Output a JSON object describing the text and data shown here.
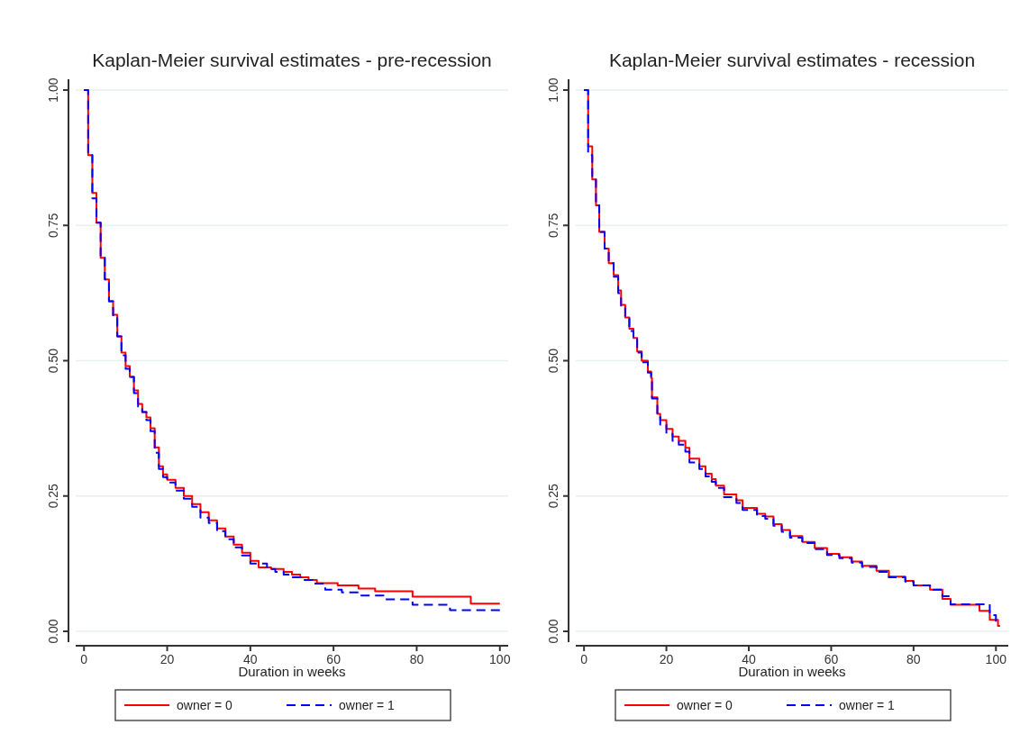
{
  "chart_data": [
    {
      "type": "step",
      "title": "Kaplan-Meier survival estimates - pre-recession",
      "xlabel": "Duration in weeks",
      "xlim": [
        -2,
        102
      ],
      "xticks": [
        0,
        20,
        40,
        60,
        80,
        100
      ],
      "ylim": [
        -0.02,
        1.02
      ],
      "yticks": [
        {
          "value": 0,
          "label": "0.00"
        },
        {
          "value": 0.25,
          "label": "0.25"
        },
        {
          "value": 0.5,
          "label": "0.50"
        },
        {
          "value": 0.75,
          "label": "0.75"
        },
        {
          "value": 1,
          "label": "1.00"
        }
      ],
      "grid": "y",
      "legend": "bottom",
      "series": [
        {
          "name": "owner = 0",
          "color": "#ff0000",
          "line_style": "solid",
          "x": [
            0,
            1,
            2,
            3,
            4,
            5,
            6,
            7,
            8,
            9,
            10,
            11,
            12,
            13,
            14,
            15,
            16,
            17,
            18,
            19,
            20,
            22,
            24,
            26,
            28,
            30,
            32,
            34,
            36,
            38,
            40,
            42,
            45,
            48,
            50,
            52,
            54,
            56,
            61,
            66,
            70,
            79,
            86,
            93,
            100
          ],
          "values": [
            1,
            0.88,
            0.81,
            0.755,
            0.69,
            0.65,
            0.61,
            0.585,
            0.545,
            0.515,
            0.49,
            0.47,
            0.445,
            0.42,
            0.405,
            0.395,
            0.375,
            0.34,
            0.305,
            0.29,
            0.28,
            0.265,
            0.25,
            0.235,
            0.22,
            0.205,
            0.19,
            0.175,
            0.16,
            0.145,
            0.13,
            0.118,
            0.115,
            0.11,
            0.105,
            0.1,
            0.095,
            0.089,
            0.085,
            0.079,
            0.074,
            0.064,
            0.064,
            0.051,
            0.051
          ]
        },
        {
          "name": "owner = 1",
          "color": "#0000ff",
          "line_style": "dashed",
          "x": [
            0,
            1,
            2,
            3,
            4,
            5,
            6,
            7,
            8,
            9,
            10,
            11,
            12,
            13,
            14,
            15,
            16,
            17,
            18,
            19,
            20,
            22,
            24,
            26,
            28,
            30,
            32,
            34,
            36,
            38,
            40,
            44,
            46,
            48,
            50,
            52,
            55,
            58,
            62,
            66,
            72,
            79,
            88,
            100
          ],
          "values": [
            1,
            0.88,
            0.8,
            0.755,
            0.69,
            0.65,
            0.61,
            0.58,
            0.545,
            0.51,
            0.485,
            0.47,
            0.44,
            0.415,
            0.405,
            0.39,
            0.37,
            0.33,
            0.3,
            0.285,
            0.275,
            0.26,
            0.245,
            0.23,
            0.21,
            0.2,
            0.185,
            0.17,
            0.155,
            0.14,
            0.125,
            0.115,
            0.11,
            0.105,
            0.1,
            0.095,
            0.088,
            0.077,
            0.072,
            0.066,
            0.059,
            0.049,
            0.039,
            0.039
          ]
        }
      ]
    },
    {
      "type": "step",
      "title": "Kaplan-Meier survival estimates - recession",
      "xlabel": "Duration in weeks",
      "xlim": [
        -2,
        103
      ],
      "xticks": [
        0,
        20,
        40,
        60,
        80,
        100
      ],
      "ylim": [
        -0.02,
        1.02
      ],
      "yticks": [
        {
          "value": 0,
          "label": "0.00"
        },
        {
          "value": 0.25,
          "label": "0.25"
        },
        {
          "value": 0.5,
          "label": "0.50"
        },
        {
          "value": 0.75,
          "label": "0.75"
        },
        {
          "value": 1,
          "label": "1.00"
        }
      ],
      "grid": "y",
      "legend": "bottom",
      "series": [
        {
          "name": "owner = 0",
          "color": "#ff0000",
          "line_style": "solid",
          "x": [
            0,
            1,
            2,
            2.9,
            3.7,
            5,
            6,
            7.2,
            8.3,
            9,
            10,
            11,
            12,
            12.9,
            14,
            15.5,
            16.3,
            16.5,
            17.8,
            18.5,
            20,
            21.5,
            23,
            24.6,
            25.6,
            28,
            29.5,
            31,
            32,
            34,
            37,
            38.5,
            42,
            44,
            46,
            48,
            50,
            53,
            56,
            59,
            62,
            65,
            67.5,
            71,
            74,
            78,
            80,
            84,
            87,
            89,
            96,
            98.5,
            100.5,
            101
          ],
          "values": [
            1,
            0.896,
            0.835,
            0.787,
            0.738,
            0.707,
            0.68,
            0.658,
            0.63,
            0.603,
            0.58,
            0.559,
            0.542,
            0.517,
            0.5,
            0.48,
            0.468,
            0.432,
            0.402,
            0.39,
            0.374,
            0.36,
            0.352,
            0.339,
            0.319,
            0.305,
            0.291,
            0.281,
            0.269,
            0.253,
            0.242,
            0.228,
            0.217,
            0.212,
            0.198,
            0.187,
            0.176,
            0.165,
            0.154,
            0.143,
            0.137,
            0.129,
            0.121,
            0.112,
            0.101,
            0.093,
            0.085,
            0.077,
            0.06,
            0.049,
            0.038,
            0.021,
            0.01,
            0.01
          ]
        },
        {
          "name": "owner = 1",
          "color": "#0000ff",
          "line_style": "dashed",
          "x": [
            0,
            1,
            2,
            2.9,
            3.7,
            5,
            6,
            7.2,
            8.3,
            9,
            10,
            11,
            12,
            12.9,
            14,
            15.5,
            16.3,
            16.5,
            17.8,
            18.5,
            20,
            21.5,
            23,
            24.6,
            25.6,
            28,
            29.5,
            31,
            32,
            34,
            37,
            38.5,
            42,
            44,
            46,
            48,
            50,
            53,
            56,
            59,
            62,
            65,
            67.5,
            71,
            74,
            78,
            80,
            84,
            87,
            89,
            96,
            98.5,
            100
          ],
          "values": [
            1,
            0.88,
            0.835,
            0.787,
            0.738,
            0.707,
            0.68,
            0.655,
            0.625,
            0.6,
            0.578,
            0.555,
            0.54,
            0.515,
            0.497,
            0.478,
            0.465,
            0.43,
            0.398,
            0.382,
            0.365,
            0.352,
            0.345,
            0.332,
            0.312,
            0.3,
            0.286,
            0.276,
            0.265,
            0.248,
            0.237,
            0.224,
            0.213,
            0.208,
            0.195,
            0.184,
            0.173,
            0.163,
            0.152,
            0.141,
            0.135,
            0.127,
            0.119,
            0.11,
            0.1,
            0.092,
            0.085,
            0.077,
            0.065,
            0.05,
            0.05,
            0.03,
            0.018
          ]
        }
      ]
    }
  ]
}
